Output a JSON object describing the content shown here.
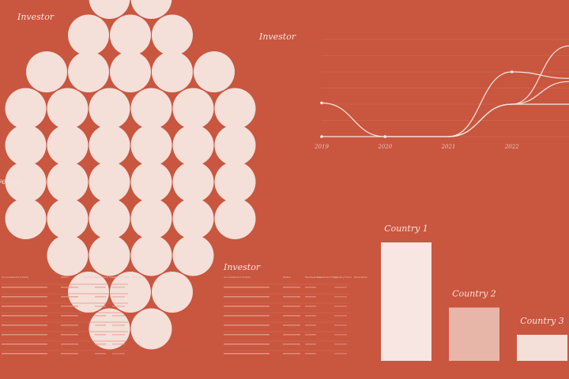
{
  "investor_labels": [
    "Investor",
    "Investor",
    "Investor",
    "Investor"
  ],
  "bubble_cluster": {
    "fill": "#f4dfd9",
    "rows": [
      2,
      3,
      5,
      6,
      6,
      6,
      6,
      4,
      3,
      2
    ]
  },
  "chart_data": [
    {
      "type": "line",
      "title": "",
      "xlabel": "",
      "ylabel": "",
      "x": [
        "2019",
        "2020",
        "2021",
        "2022"
      ],
      "xlim": [
        2019,
        2022.9
      ],
      "ylim": [
        0,
        100
      ],
      "grid": true,
      "series": [
        {
          "points": [
            [
              2019,
              52
            ],
            [
              2020,
              0
            ],
            [
              2021,
              0
            ],
            [
              2022,
              100
            ],
            [
              2022.9,
              90
            ]
          ]
        },
        {
          "points": [
            [
              2019,
              0
            ],
            [
              2020,
              0
            ],
            [
              2021,
              0
            ],
            [
              2022,
              50
            ],
            [
              2022.9,
              140
            ]
          ]
        },
        {
          "points": [
            [
              2021,
              0
            ],
            [
              2022,
              50
            ],
            [
              2022.9,
              85
            ]
          ]
        },
        {
          "points": [
            [
              2021,
              0
            ],
            [
              2022,
              50
            ],
            [
              2022.9,
              50
            ]
          ]
        }
      ]
    },
    {
      "type": "bar",
      "title": "",
      "categories": [
        "Country 1",
        "Country 2",
        "Country 3"
      ],
      "values": [
        100,
        45,
        22
      ],
      "colors": [
        "#f7e6e1",
        "#e8b6a8",
        "#f4dfd9"
      ],
      "ylim": [
        0,
        100
      ]
    }
  ],
  "table": {
    "title": "Investor",
    "column_headers": [
      "Co-Investment Activity",
      "Status",
      "Headquarters",
      "Investment Stage",
      "Industry Focus",
      "Description"
    ],
    "row_count": 8
  },
  "colors": {
    "background": "#c9563f",
    "accent_light": "#f4dfd9",
    "text_light": "#f6e4de",
    "line": "#f7e6e1"
  }
}
